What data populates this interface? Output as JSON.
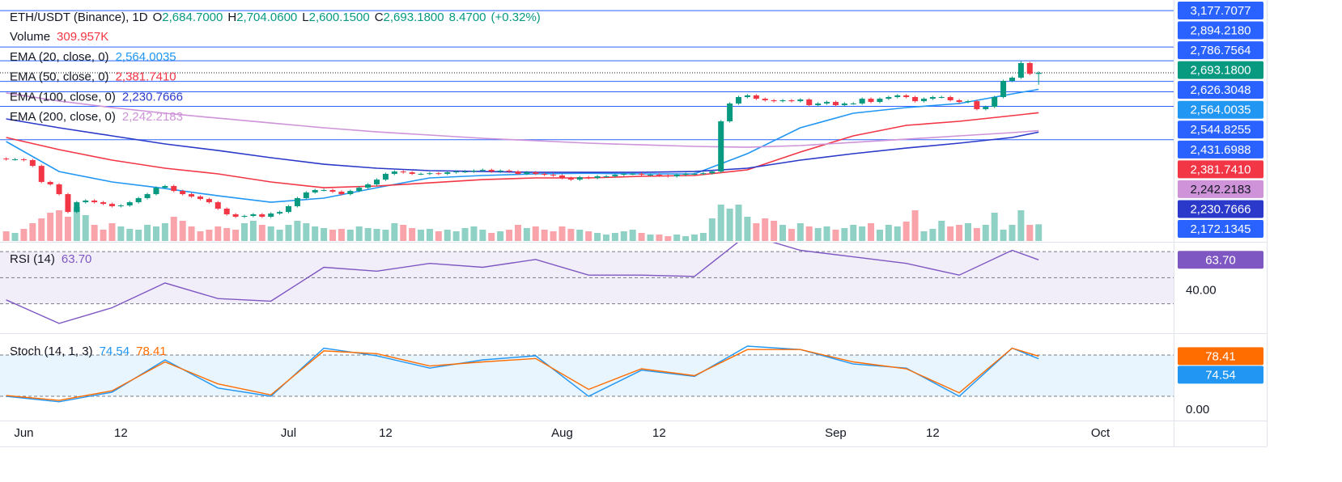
{
  "chart_data": {
    "type": "candlestick",
    "header": {
      "symbol": "ETH/USDT (Binance), 1D",
      "fields": [
        {
          "key": "O",
          "label": "2,684.7000"
        },
        {
          "key": "H",
          "label": "2,704.0600"
        },
        {
          "key": "L",
          "label": "2,600.1500"
        },
        {
          "key": "C",
          "label": "2,693.1800"
        }
      ],
      "change": "8.4700",
      "change_pct": "(+0.32%)"
    },
    "up_color": "#089981",
    "down_color": "#f23645",
    "xlim": [
      -0.7,
      132.3
    ],
    "ylim": [
      1383,
      3260
    ],
    "xticks": [
      {
        "value": 2,
        "label": "Jun"
      },
      {
        "value": 13,
        "label": "12"
      },
      {
        "value": 32,
        "label": "Jul"
      },
      {
        "value": 43,
        "label": "12"
      },
      {
        "value": 63,
        "label": "Aug"
      },
      {
        "value": 74,
        "label": "12"
      },
      {
        "value": 94,
        "label": "Sep"
      },
      {
        "value": 105,
        "label": "12"
      },
      {
        "value": 124,
        "label": "Oct"
      }
    ],
    "candles": {
      "open": [
        2025,
        2019,
        2019,
        2013,
        1968,
        1843,
        1824,
        1748,
        1609,
        1685,
        1698,
        1685,
        1672,
        1654,
        1660,
        1685,
        1717,
        1748,
        1798,
        1811,
        1773,
        1748,
        1729,
        1710,
        1685,
        1635,
        1591,
        1572,
        1578,
        1591,
        1572,
        1597,
        1609,
        1654,
        1717,
        1761,
        1780,
        1780,
        1767,
        1748,
        1773,
        1798,
        1824,
        1861,
        1906,
        1924,
        1918,
        1906,
        1906,
        1911,
        1906,
        1918,
        1924,
        1924,
        1931,
        1937,
        1924,
        1931,
        1924,
        1906,
        1918,
        1906,
        1899,
        1893,
        1874,
        1861,
        1880,
        1874,
        1887,
        1887,
        1899,
        1906,
        1906,
        1899,
        1899,
        1893,
        1887,
        1899,
        1906,
        1906,
        1911,
        1924,
        2315,
        2454,
        2504,
        2517,
        2491,
        2479,
        2472,
        2479,
        2472,
        2485,
        2441,
        2454,
        2466,
        2441,
        2454,
        2454,
        2491,
        2466,
        2491,
        2504,
        2517,
        2504,
        2472,
        2491,
        2504,
        2504,
        2479,
        2466,
        2472,
        2410,
        2428,
        2504,
        2630,
        2655,
        2769,
        2684.7
      ],
      "high": [
        2035,
        2029,
        2029,
        2023,
        1978,
        1853,
        1834,
        1758,
        1695,
        1708,
        1708,
        1695,
        1682,
        1670,
        1695,
        1727,
        1758,
        1808,
        1821,
        1821,
        1783,
        1758,
        1739,
        1720,
        1695,
        1645,
        1601,
        1588,
        1601,
        1601,
        1607,
        1619,
        1664,
        1727,
        1771,
        1790,
        1790,
        1790,
        1777,
        1783,
        1808,
        1834,
        1871,
        1916,
        1934,
        1934,
        1928,
        1916,
        1921,
        1921,
        1928,
        1934,
        1934,
        1941,
        1947,
        1947,
        1941,
        1941,
        1934,
        1928,
        1928,
        1916,
        1909,
        1903,
        1884,
        1890,
        1890,
        1897,
        1897,
        1909,
        1916,
        1916,
        1916,
        1909,
        1909,
        1903,
        1909,
        1916,
        1916,
        1921,
        1934,
        2325,
        2464,
        2514,
        2527,
        2527,
        2501,
        2489,
        2489,
        2489,
        2495,
        2495,
        2464,
        2476,
        2476,
        2464,
        2464,
        2501,
        2501,
        2501,
        2514,
        2527,
        2527,
        2514,
        2501,
        2514,
        2514,
        2514,
        2489,
        2482,
        2482,
        2438,
        2514,
        2640,
        2665,
        2787,
        2779,
        2704.06
      ],
      "low": [
        2009,
        2009,
        2003,
        1958,
        1833,
        1814,
        1738,
        1599,
        1599,
        1675,
        1675,
        1662,
        1644,
        1644,
        1650,
        1675,
        1707,
        1738,
        1788,
        1763,
        1738,
        1719,
        1700,
        1675,
        1625,
        1581,
        1562,
        1562,
        1568,
        1562,
        1562,
        1587,
        1599,
        1644,
        1707,
        1751,
        1770,
        1757,
        1738,
        1738,
        1763,
        1788,
        1814,
        1851,
        1896,
        1908,
        1896,
        1896,
        1896,
        1896,
        1896,
        1908,
        1914,
        1914,
        1921,
        1914,
        1914,
        1914,
        1896,
        1896,
        1896,
        1889,
        1883,
        1864,
        1851,
        1851,
        1864,
        1864,
        1877,
        1877,
        1889,
        1896,
        1889,
        1889,
        1883,
        1877,
        1877,
        1889,
        1896,
        1896,
        1901,
        1914,
        2305,
        2444,
        2494,
        2481,
        2469,
        2462,
        2462,
        2462,
        2462,
        2431,
        2431,
        2444,
        2431,
        2431,
        2444,
        2444,
        2456,
        2456,
        2481,
        2494,
        2494,
        2462,
        2462,
        2481,
        2494,
        2469,
        2456,
        2456,
        2400,
        2400,
        2418,
        2494,
        2620,
        2645,
        2675,
        2600.15
      ],
      "close": [
        2019,
        2019,
        2013,
        1968,
        1843,
        1824,
        1748,
        1609,
        1685,
        1698,
        1685,
        1672,
        1654,
        1660,
        1685,
        1717,
        1748,
        1798,
        1811,
        1773,
        1748,
        1729,
        1710,
        1685,
        1635,
        1591,
        1572,
        1578,
        1591,
        1572,
        1597,
        1609,
        1654,
        1717,
        1761,
        1780,
        1780,
        1767,
        1748,
        1773,
        1798,
        1824,
        1861,
        1906,
        1924,
        1918,
        1906,
        1906,
        1911,
        1906,
        1918,
        1924,
        1924,
        1931,
        1937,
        1924,
        1931,
        1924,
        1906,
        1918,
        1906,
        1899,
        1893,
        1874,
        1861,
        1880,
        1874,
        1887,
        1887,
        1899,
        1906,
        1906,
        1899,
        1899,
        1893,
        1887,
        1899,
        1906,
        1906,
        1911,
        1924,
        2315,
        2454,
        2504,
        2517,
        2491,
        2479,
        2472,
        2479,
        2472,
        2485,
        2441,
        2454,
        2466,
        2441,
        2454,
        2454,
        2491,
        2466,
        2491,
        2504,
        2517,
        2504,
        2472,
        2491,
        2504,
        2504,
        2479,
        2466,
        2472,
        2410,
        2428,
        2504,
        2630,
        2655,
        2769,
        2685,
        2693.18
      ]
    },
    "volume": {
      "name": "Volume",
      "value_label": "309.957K",
      "ylim": [
        0,
        4470000
      ],
      "values": [
        180000,
        150000,
        225000,
        330000,
        420000,
        525000,
        570000,
        450000,
        630000,
        480000,
        300000,
        210000,
        330000,
        270000,
        225000,
        210000,
        300000,
        270000,
        330000,
        450000,
        375000,
        270000,
        180000,
        210000,
        270000,
        240000,
        210000,
        330000,
        375000,
        300000,
        270000,
        210000,
        300000,
        375000,
        330000,
        270000,
        240000,
        210000,
        225000,
        210000,
        270000,
        240000,
        225000,
        210000,
        330000,
        300000,
        240000,
        210000,
        225000,
        180000,
        210000,
        180000,
        240000,
        270000,
        210000,
        150000,
        180000,
        210000,
        300000,
        240000,
        270000,
        210000,
        180000,
        270000,
        225000,
        210000,
        180000,
        150000,
        120000,
        150000,
        180000,
        210000,
        150000,
        120000,
        120000,
        90000,
        120000,
        90000,
        120000,
        150000,
        420000,
        675000,
        600000,
        675000,
        450000,
        330000,
        420000,
        375000,
        300000,
        225000,
        330000,
        270000,
        240000,
        270000,
        210000,
        240000,
        300000,
        270000,
        330000,
        210000,
        300000,
        270000,
        360000,
        570000,
        180000,
        225000,
        375000,
        270000,
        300000,
        330000,
        240000,
        300000,
        525000,
        210000,
        300000,
        570000,
        300000,
        309957
      ]
    },
    "line_x": [
      0,
      6,
      12,
      18,
      24,
      30,
      36,
      42,
      48,
      54,
      60,
      66,
      72,
      78,
      84,
      90,
      96,
      102,
      108,
      114,
      117
    ],
    "ema": [
      {
        "name": "EMA (20, close, 0)",
        "color": "#2196f3",
        "value_label": "2,564.0035",
        "values": [
          2158,
          1924,
          1843,
          1792,
          1735,
          1685,
          1717,
          1798,
          1874,
          1893,
          1906,
          1911,
          1906,
          1906,
          2063,
          2265,
          2378,
          2422,
          2454,
          2529,
          2564.0035
        ]
      },
      {
        "name": "EMA (50, close, 0)",
        "color": "#f23645",
        "value_label": "2,381.7410",
        "values": [
          2189,
          2095,
          2013,
          1950,
          1906,
          1843,
          1798,
          1811,
          1836,
          1861,
          1874,
          1874,
          1887,
          1893,
          1937,
          2076,
          2202,
          2284,
          2315,
          2359,
          2381.741
        ]
      },
      {
        "name": "EMA (100, close, 0)",
        "color": "#2a39c9",
        "value_label": "2,230.7666",
        "values": [
          2334,
          2265,
          2202,
          2139,
          2088,
          2032,
          1981,
          1950,
          1931,
          1924,
          1918,
          1918,
          1918,
          1924,
          1950,
          2013,
          2063,
          2107,
          2145,
          2189,
          2230.7666
        ]
      },
      {
        "name": "EMA (200, close, 0)",
        "color": "#ce93d8",
        "value_label": "2,242.2183",
        "values": [
          2536,
          2473,
          2422,
          2378,
          2340,
          2302,
          2265,
          2233,
          2208,
          2183,
          2164,
          2145,
          2132,
          2120,
          2113,
          2126,
          2151,
          2176,
          2202,
          2227,
          2242.2183
        ]
      }
    ],
    "rsi": {
      "name": "RSI (14)",
      "color": "#7e57c2",
      "value_label": "63.70",
      "ylim": [
        8.1,
        76.9
      ],
      "levels": [
        70,
        50,
        30
      ],
      "yticks": [
        {
          "value": 40,
          "label": "40.00"
        }
      ],
      "values": [
        33,
        15,
        27,
        46,
        34,
        32,
        58,
        55,
        61,
        58,
        64,
        52,
        52,
        51,
        83,
        71,
        66,
        61,
        52,
        71,
        63.7
      ]
    },
    "stoch": {
      "name": "Stoch (14, 1, 3)",
      "ylim": [
        -15.3,
        110.6
      ],
      "levels": [
        80,
        20
      ],
      "yticks": [
        {
          "value": 0,
          "label": "0.00"
        }
      ],
      "series": [
        {
          "color": "#2196f3",
          "value_label": "74.54",
          "values": [
            20,
            12,
            26,
            73,
            32,
            20,
            90,
            79,
            61,
            73,
            79,
            20,
            58,
            49,
            93,
            88,
            67,
            61,
            20,
            90,
            74.54
          ]
        },
        {
          "color": "#ff6d00",
          "value_label": "78.41",
          "values": [
            21,
            14,
            28,
            70,
            38,
            22,
            86,
            82,
            64,
            70,
            75,
            30,
            60,
            50,
            88,
            88,
            70,
            60,
            25,
            90,
            78.41
          ]
        }
      ]
    },
    "hline_color": "#2962ff",
    "price_tags": [
      {
        "value": 3177.7077,
        "label": "3,177.7077",
        "color": "#2962ff"
      },
      {
        "value": 2894.218,
        "label": "2,894.2180",
        "color": "#2962ff"
      },
      {
        "value": 2786.7564,
        "label": "2,786.7564",
        "color": "#2962ff"
      },
      {
        "value": 2693.18,
        "label": "2,693.1800",
        "color": "#089981"
      },
      {
        "value": 2626.3048,
        "label": "2,626.3048",
        "color": "#2962ff"
      },
      {
        "value": 2564.0035,
        "label": "2,564.0035",
        "color": "#2196f3"
      },
      {
        "value": 2544.8255,
        "label": "2,544.8255",
        "color": "#2962ff"
      },
      {
        "value": 2431.6988,
        "label": "2,431.6988",
        "color": "#2962ff"
      },
      {
        "value": 2381.741,
        "label": "2,381.7410",
        "color": "#f23645"
      },
      {
        "value": 2242.2183,
        "label": "2,242.2183",
        "color": "#ce93d8"
      },
      {
        "value": 2230.7666,
        "label": "2,230.7666",
        "color": "#2a39c9"
      },
      {
        "value": 2172.1345,
        "label": "2,172.1345",
        "color": "#2962ff"
      }
    ]
  }
}
